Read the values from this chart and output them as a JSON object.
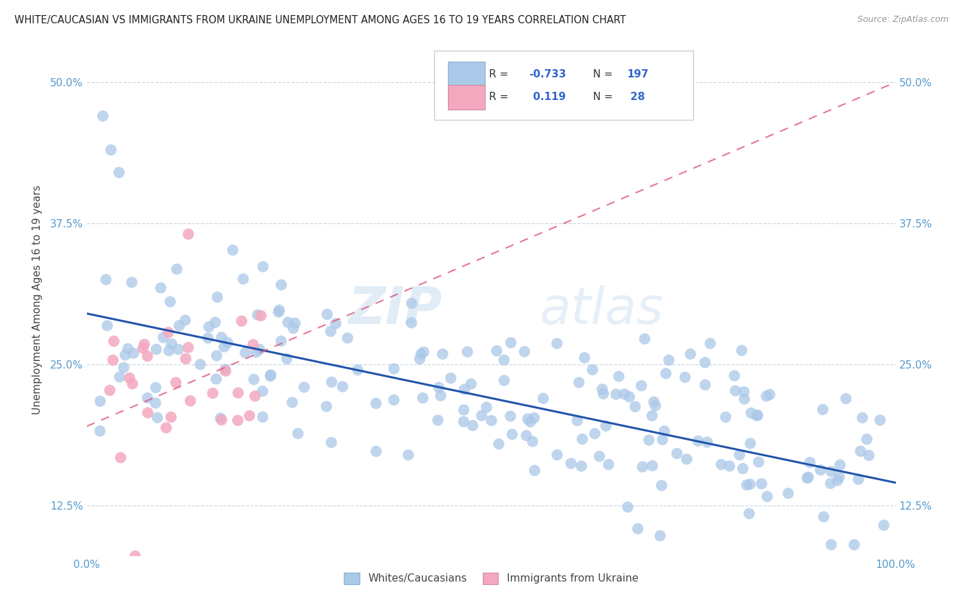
{
  "title": "WHITE/CAUCASIAN VS IMMIGRANTS FROM UKRAINE UNEMPLOYMENT AMONG AGES 16 TO 19 YEARS CORRELATION CHART",
  "source": "Source: ZipAtlas.com",
  "ylabel": "Unemployment Among Ages 16 to 19 years",
  "xlim": [
    0.0,
    1.0
  ],
  "ylim": [
    0.08,
    0.535
  ],
  "yticks": [
    0.125,
    0.25,
    0.375,
    0.5
  ],
  "ytick_labels": [
    "12.5%",
    "25.0%",
    "37.5%",
    "50.0%"
  ],
  "xticks": [
    0.0,
    1.0
  ],
  "xtick_labels": [
    "0.0%",
    "100.0%"
  ],
  "blue_R": -0.733,
  "blue_N": 197,
  "pink_R": 0.119,
  "pink_N": 28,
  "blue_color": "#aac8e8",
  "pink_color": "#f4a8c0",
  "blue_line_color": "#2255aa",
  "pink_line_color": "#dd5577",
  "watermark_zip": "ZIP",
  "watermark_atlas": "atlas",
  "legend_label_blue": "Whites/Caucasians",
  "legend_label_pink": "Immigrants from Ukraine",
  "blue_trend_x": [
    0.0,
    1.0
  ],
  "blue_trend_y": [
    0.295,
    0.145
  ],
  "pink_trend_x": [
    0.0,
    1.0
  ],
  "pink_trend_y": [
    0.195,
    0.5
  ]
}
